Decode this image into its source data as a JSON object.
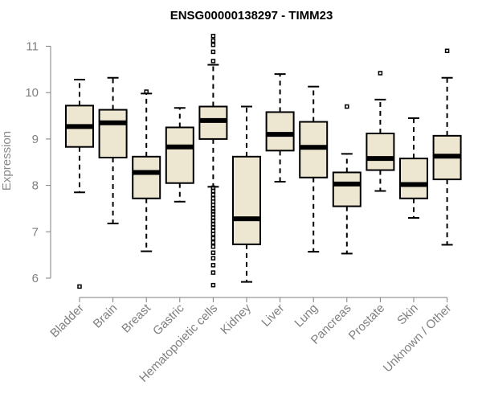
{
  "chart_data": {
    "type": "boxplot",
    "title": "ENSG00000138297 - TIMM23",
    "xlabel": "",
    "ylabel": "Expression",
    "ylim": [
      5.75,
      11.2
    ],
    "yticks": [
      "6",
      "7",
      "8",
      "9",
      "10",
      "11"
    ],
    "categories": [
      "Bladder",
      "Brain",
      "Breast",
      "Gastric",
      "Hematopoietic cells",
      "Kidney",
      "Liver",
      "Lung",
      "Pancreas",
      "Prostate",
      "Skin",
      "Unknown / Other"
    ],
    "boxes": [
      {
        "name": "Bladder",
        "whisker_low": 7.85,
        "q1": 8.83,
        "median": 9.27,
        "q3": 9.72,
        "whisker_high": 10.28,
        "outliers": [
          5.82
        ]
      },
      {
        "name": "Brain",
        "whisker_low": 7.18,
        "q1": 8.6,
        "median": 9.35,
        "q3": 9.63,
        "whisker_high": 10.32,
        "outliers": []
      },
      {
        "name": "Breast",
        "whisker_low": 6.58,
        "q1": 7.72,
        "median": 8.28,
        "q3": 8.62,
        "whisker_high": 9.98,
        "outliers": [
          10.02
        ]
      },
      {
        "name": "Gastric",
        "whisker_low": 7.65,
        "q1": 8.05,
        "median": 8.83,
        "q3": 9.25,
        "whisker_high": 9.67,
        "outliers": []
      },
      {
        "name": "Hematopoietic cells",
        "whisker_low": 7.97,
        "q1": 9.0,
        "median": 9.4,
        "q3": 9.7,
        "whisker_high": 10.6,
        "outliers": [
          11.22,
          11.12,
          11.03,
          10.88,
          10.68,
          7.95,
          7.88,
          7.8,
          7.72,
          7.65,
          7.58,
          7.5,
          7.44,
          7.38,
          7.3,
          7.24,
          7.16,
          7.1,
          7.02,
          6.95,
          6.86,
          6.77,
          6.68,
          6.55,
          6.43,
          6.28,
          6.12,
          5.85
        ]
      },
      {
        "name": "Kidney",
        "whisker_low": 5.92,
        "q1": 6.73,
        "median": 7.28,
        "q3": 8.62,
        "whisker_high": 9.7,
        "outliers": []
      },
      {
        "name": "Liver",
        "whisker_low": 8.08,
        "q1": 8.75,
        "median": 9.1,
        "q3": 9.58,
        "whisker_high": 10.4,
        "outliers": []
      },
      {
        "name": "Lung",
        "whisker_low": 6.57,
        "q1": 8.17,
        "median": 8.82,
        "q3": 9.37,
        "whisker_high": 10.13,
        "outliers": []
      },
      {
        "name": "Pancreas",
        "whisker_low": 6.53,
        "q1": 7.55,
        "median": 8.03,
        "q3": 8.28,
        "whisker_high": 8.68,
        "outliers": [
          9.7
        ]
      },
      {
        "name": "Prostate",
        "whisker_low": 7.88,
        "q1": 8.33,
        "median": 8.58,
        "q3": 9.12,
        "whisker_high": 9.85,
        "outliers": [
          10.42
        ]
      },
      {
        "name": "Skin",
        "whisker_low": 7.3,
        "q1": 7.72,
        "median": 8.02,
        "q3": 8.58,
        "whisker_high": 9.45,
        "outliers": []
      },
      {
        "name": "Unknown / Other",
        "whisker_low": 6.72,
        "q1": 8.13,
        "median": 8.63,
        "q3": 9.07,
        "whisker_high": 10.32,
        "outliers": [
          10.9
        ]
      }
    ]
  }
}
